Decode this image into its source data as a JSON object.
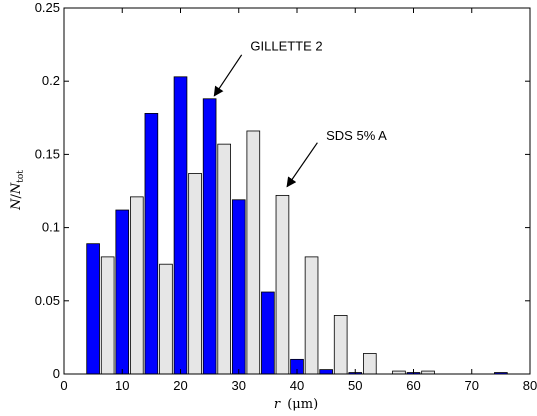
{
  "chart_data": {
    "type": "bar",
    "xlabel": {
      "var": "r",
      "unit": "(μm)"
    },
    "ylabel": {
      "num": "N",
      "sep": "/",
      "den": "N",
      "sub": "tot"
    },
    "xlim": [
      0,
      80
    ],
    "ylim": [
      0,
      0.25
    ],
    "xticks": [
      0,
      10,
      20,
      30,
      40,
      50,
      60,
      70,
      80
    ],
    "yticks": [
      0,
      0.05,
      0.1,
      0.15,
      0.2,
      0.25
    ],
    "xtick_labels": [
      "0",
      "10",
      "20",
      "30",
      "40",
      "50",
      "60",
      "70",
      "80"
    ],
    "ytick_labels": [
      "0",
      "0.05",
      "0.1",
      "0.15",
      "0.2",
      "0.25"
    ],
    "grid": false,
    "legend": "none",
    "bar_width": 2.2,
    "series": [
      {
        "name": "GILLETTE 2",
        "color": "#0000ff",
        "stroke": "#000000",
        "x": [
          5,
          10,
          15,
          20,
          25,
          30,
          35,
          40,
          45,
          50,
          55,
          60,
          65,
          70,
          75
        ],
        "values": [
          0.089,
          0.112,
          0.178,
          0.203,
          0.188,
          0.119,
          0.056,
          0.01,
          0.003,
          0.001,
          0,
          0.001,
          0,
          0,
          0.001
        ]
      },
      {
        "name": "SDS 5% A",
        "color": "#e6e6e6",
        "stroke": "#000000",
        "x": [
          7.5,
          12.5,
          17.5,
          22.5,
          27.5,
          32.5,
          37.5,
          42.5,
          47.5,
          52.5,
          57.5,
          62.5,
          67.5,
          72.5,
          77.5
        ],
        "values": [
          0.08,
          0.121,
          0.075,
          0.137,
          0.157,
          0.166,
          0.122,
          0.08,
          0.04,
          0.014,
          0.002,
          0.002,
          0,
          0,
          0
        ]
      }
    ],
    "annotations": [
      {
        "text": "GILLETTE 2",
        "series": "GILLETTE 2",
        "arrow_tip": [
          25.8,
          0.19
        ],
        "arrow_tail": [
          30.5,
          0.218
        ],
        "text_at": [
          32,
          0.221
        ]
      },
      {
        "text": "SDS 5% A",
        "series": "SDS 5% A",
        "arrow_tip": [
          38.3,
          0.128
        ],
        "arrow_tail": [
          43.5,
          0.158
        ],
        "text_at": [
          45,
          0.16
        ]
      }
    ]
  }
}
